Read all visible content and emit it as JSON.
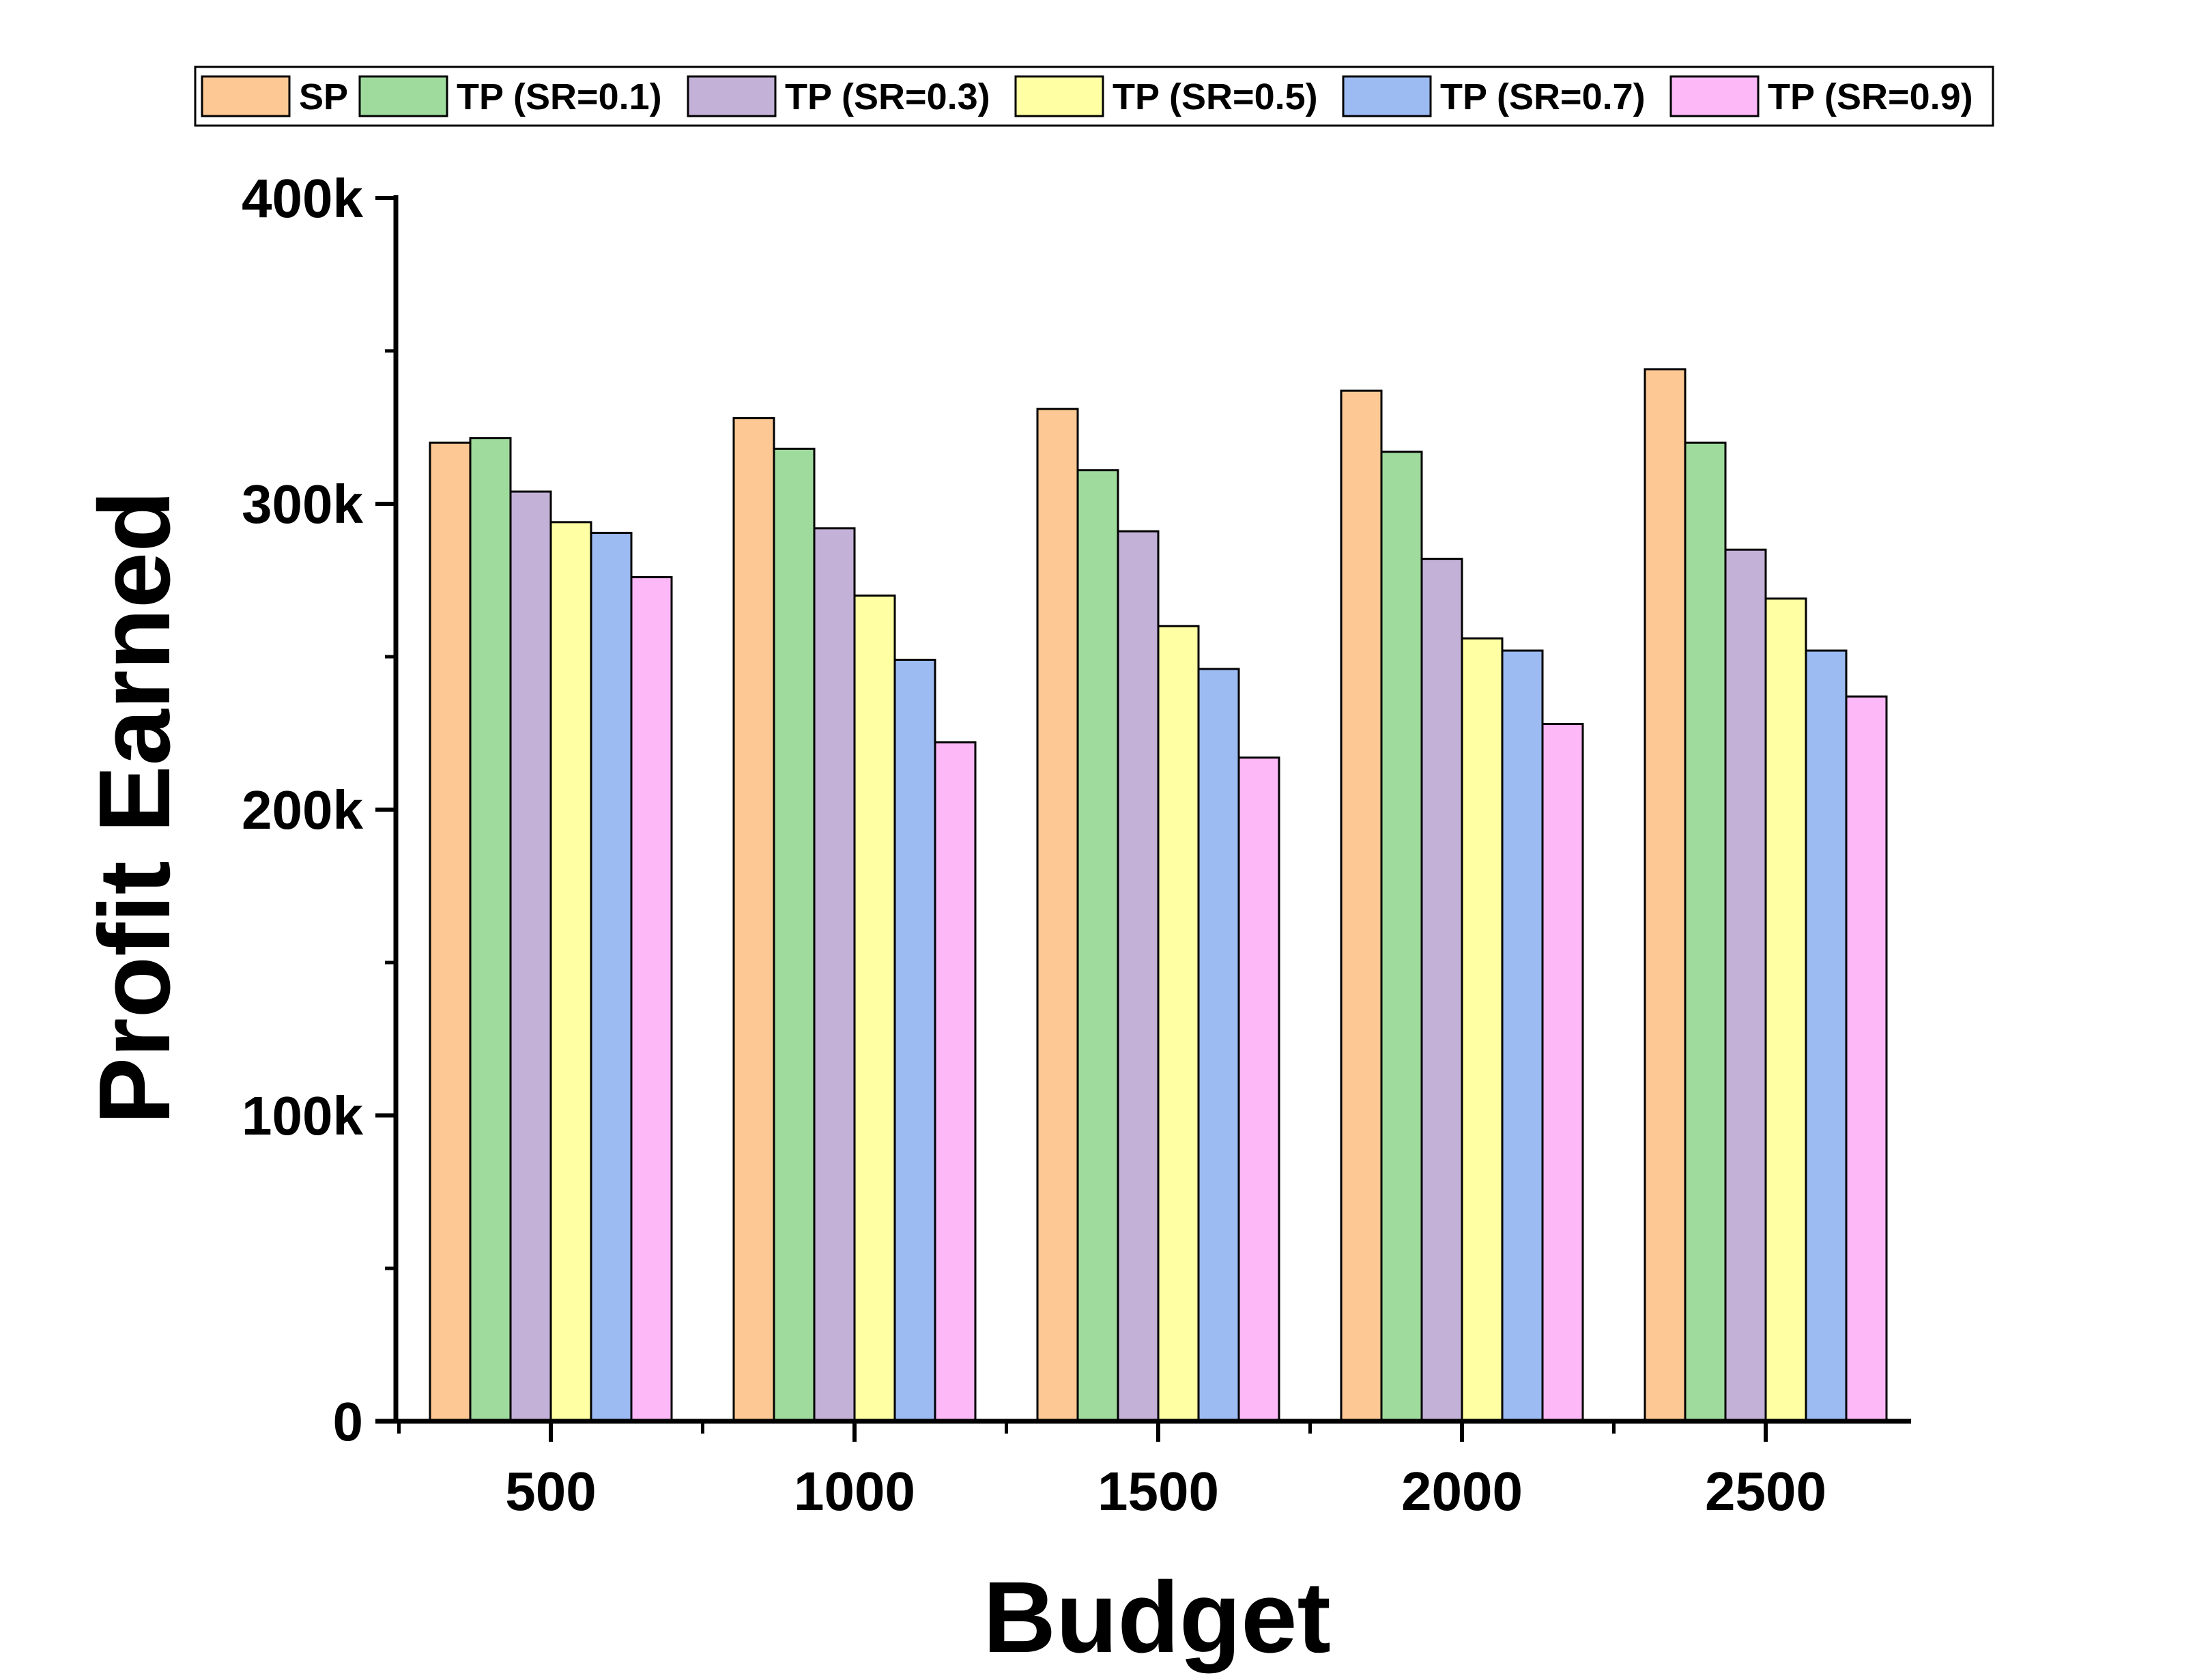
{
  "chart_data": {
    "type": "bar",
    "xlabel": "Budget",
    "ylabel": "Profit Earned",
    "categories": [
      "500",
      "1000",
      "1500",
      "2000",
      "2500"
    ],
    "ylim": [
      0,
      400000
    ],
    "yticks": [
      0,
      100000,
      200000,
      300000,
      400000
    ],
    "ytick_labels": [
      "0",
      "100k",
      "200k",
      "300k",
      "400k"
    ],
    "legend_position": "top",
    "grid": false,
    "series": [
      {
        "name": "SP",
        "color": "#FDC893",
        "values": [
          320000,
          328000,
          331000,
          337000,
          344000
        ]
      },
      {
        "name": "TP (SR=0.1)",
        "color": "#A0DB9E",
        "values": [
          321500,
          318000,
          311000,
          317000,
          320000
        ]
      },
      {
        "name": "TP (SR=0.3)",
        "color": "#C4B1D8",
        "values": [
          304000,
          292000,
          291000,
          282000,
          285000
        ]
      },
      {
        "name": "TP (SR=0.5)",
        "color": "#FFFFA3",
        "values": [
          294000,
          270000,
          260000,
          256000,
          269000
        ]
      },
      {
        "name": "TP (SR=0.7)",
        "color": "#9DBBF3",
        "values": [
          290500,
          249000,
          246000,
          252000,
          252000
        ]
      },
      {
        "name": "TP (SR=0.9)",
        "color": "#FDB8F7",
        "values": [
          276000,
          222000,
          217000,
          228000,
          237000
        ]
      }
    ]
  }
}
